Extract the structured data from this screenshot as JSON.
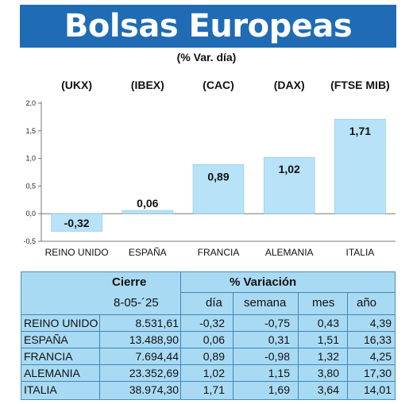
{
  "title": "Bolsas Europeas",
  "subtitle": "(% Var. día)",
  "chart_data": {
    "type": "bar",
    "index_codes": [
      "(UKX)",
      "(IBEX)",
      "(CAC)",
      "(DAX)",
      "(FTSE MIB)"
    ],
    "categories": [
      "REINO UNIDO",
      "ESPAÑA",
      "FRANCIA",
      "ALEMANIA",
      "ITALIA"
    ],
    "values": [
      -0.32,
      0.06,
      0.89,
      1.02,
      1.71
    ],
    "value_labels": [
      "-0,32",
      "0,06",
      "0,89",
      "1,02",
      "1,71"
    ],
    "ylim": [
      -0.5,
      2.0
    ],
    "yticks": [
      2.0,
      1.5,
      1.0,
      0.5,
      0.0,
      -0.5
    ],
    "ytick_labels": [
      "2,0",
      "1,5",
      "1,0",
      "0,5",
      "0,0",
      "-0,5"
    ],
    "grid": false,
    "bar_color": "#b7e2f8",
    "bar_stroke": "#8cc7e6",
    "axis_color": "#777777"
  },
  "table": {
    "headers": {
      "cierre": "Cierre",
      "variacion": "% Variación"
    },
    "subheaders": {
      "date": "8-05-´25",
      "dia": "día",
      "semana": "semana",
      "mes": "mes",
      "ano": "año"
    },
    "rows": [
      {
        "name": "REINO UNIDO",
        "cierre": "8.531,61",
        "dia": "-0,32",
        "semana": "-0,75",
        "mes": "0,43",
        "ano": "4,39"
      },
      {
        "name": "ESPAÑA",
        "cierre": "13.488,90",
        "dia": "0,06",
        "semana": "0,31",
        "mes": "1,51",
        "ano": "16,33"
      },
      {
        "name": "FRANCIA",
        "cierre": "7.694,44",
        "dia": "0,89",
        "semana": "-0,98",
        "mes": "1,32",
        "ano": "4,25"
      },
      {
        "name": "ALEMANIA",
        "cierre": "23.352,69",
        "dia": "1,02",
        "semana": "1,15",
        "mes": "3,80",
        "ano": "17,30"
      },
      {
        "name": "ITALIA",
        "cierre": "38.974,30",
        "dia": "1,71",
        "semana": "1,69",
        "mes": "3,64",
        "ano": "14,01"
      }
    ],
    "background": "#a9daf3",
    "line_color": "#3f86b6"
  }
}
